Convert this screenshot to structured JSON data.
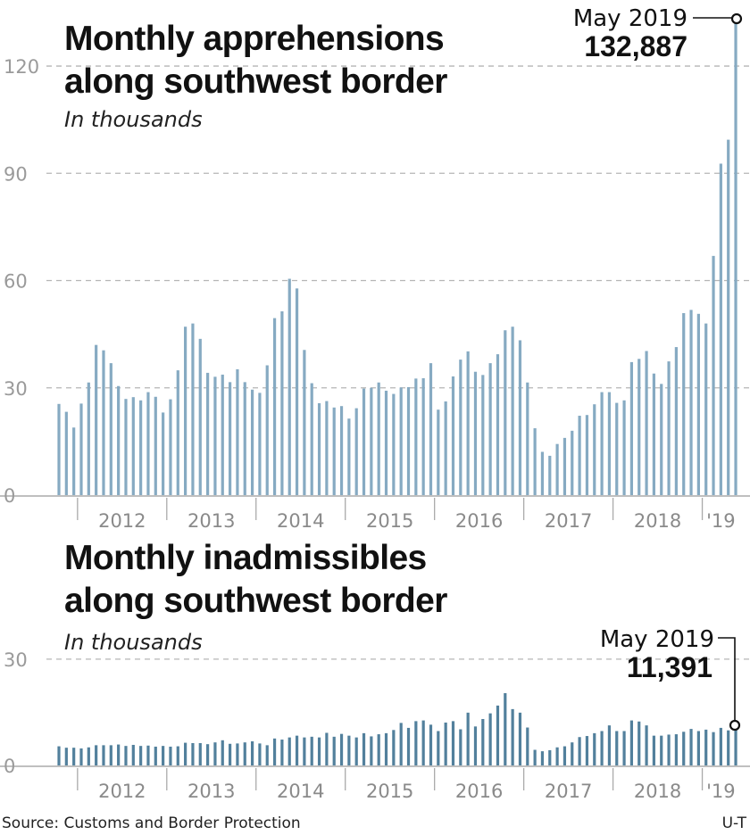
{
  "source": "Source: Customs and Border Protection",
  "credit": "U-T",
  "colors": {
    "apprehensions_bar": "#86aac2",
    "inadmissibles_bar": "#52809c",
    "annotation": "#111111"
  },
  "chart_data": [
    {
      "type": "bar",
      "title_line1": "Monthly apprehensions",
      "title_line2": "along southwest border",
      "subtitle": "In thousands",
      "xlabel": "",
      "ylabel": "In thousands",
      "start_month": "Oct 2011",
      "end_month": "May 2019",
      "ylim": [
        0,
        132.887
      ],
      "yticks": [
        "0",
        "30",
        "60",
        "90",
        "120"
      ],
      "ytick_values": [
        0,
        30,
        60,
        90,
        120
      ],
      "xticks": [
        "2012",
        "2013",
        "2014",
        "2015",
        "2016",
        "2017",
        "2018",
        "'19"
      ],
      "grid": true,
      "annotation": {
        "label": "May 2019",
        "value": "132,887"
      },
      "values": [
        25.5,
        23.3,
        18.9,
        25.6,
        31.5,
        42.0,
        40.5,
        36.9,
        30.5,
        26.9,
        27.4,
        26.5,
        28.8,
        27.5,
        23.1,
        26.8,
        34.9,
        47.1,
        48.0,
        43.7,
        34.2,
        33.1,
        33.7,
        31.6,
        35.2,
        31.6,
        29.5,
        28.6,
        36.3,
        49.5,
        51.4,
        60.5,
        57.8,
        40.6,
        31.3,
        25.7,
        26.3,
        24.5,
        24.9,
        21.4,
        24.3,
        29.8,
        30.0,
        31.5,
        29.2,
        28.3,
        30.1,
        30.2,
        32.6,
        32.7,
        36.9,
        23.9,
        26.2,
        33.2,
        37.9,
        40.2,
        34.5,
        33.6,
        36.9,
        39.4,
        46.1,
        47.1,
        43.3,
        31.5,
        18.7,
        12.1,
        11.0,
        14.3,
        16.0,
        18.0,
        22.2,
        22.4,
        25.4,
        28.8,
        28.8,
        25.8,
        26.5,
        37.2,
        38.1,
        40.3,
        34.0,
        31.1,
        37.4,
        41.4,
        50.9,
        51.8,
        50.7,
        48.0,
        66.9,
        92.7,
        99.4,
        132.887
      ]
    },
    {
      "type": "bar",
      "title_line1": "Monthly inadmissibles",
      "title_line2": "along southwest border",
      "subtitle": "In thousands",
      "xlabel": "",
      "ylabel": "In thousands",
      "start_month": "Oct 2011",
      "end_month": "May 2019",
      "ylim": [
        0,
        30
      ],
      "yticks": [
        "0",
        "30"
      ],
      "ytick_values": [
        0,
        30
      ],
      "xticks": [
        "2012",
        "2013",
        "2014",
        "2015",
        "2016",
        "2017",
        "2018",
        "'19"
      ],
      "grid": true,
      "annotation": {
        "label": "May 2019",
        "value": "11,391"
      },
      "values": [
        5.4,
        5.0,
        5.0,
        4.8,
        5.1,
        5.7,
        5.7,
        5.7,
        5.9,
        5.5,
        5.8,
        5.5,
        5.6,
        5.3,
        5.5,
        5.3,
        5.4,
        6.4,
        6.3,
        6.3,
        6.0,
        6.5,
        7.1,
        6.1,
        6.2,
        6.5,
        6.8,
        6.2,
        5.7,
        7.6,
        7.3,
        7.9,
        8.4,
        7.9,
        8.1,
        7.9,
        9.2,
        8.1,
        8.9,
        8.4,
        7.9,
        9.1,
        8.2,
        8.8,
        9.1,
        10.0,
        12.0,
        10.6,
        12.5,
        12.7,
        11.5,
        9.7,
        12.1,
        12.5,
        10.2,
        14.9,
        11.0,
        13.1,
        14.7,
        16.9,
        20.4,
        15.9,
        14.9,
        10.7,
        4.4,
        4.0,
        4.3,
        5.1,
        5.4,
        6.5,
        8.0,
        8.3,
        9.1,
        9.7,
        11.3,
        9.7,
        9.7,
        12.7,
        12.4,
        11.3,
        8.4,
        8.4,
        8.7,
        8.8,
        9.5,
        10.3,
        9.7,
        10.1,
        9.4,
        10.6,
        9.9,
        11.391
      ]
    }
  ]
}
